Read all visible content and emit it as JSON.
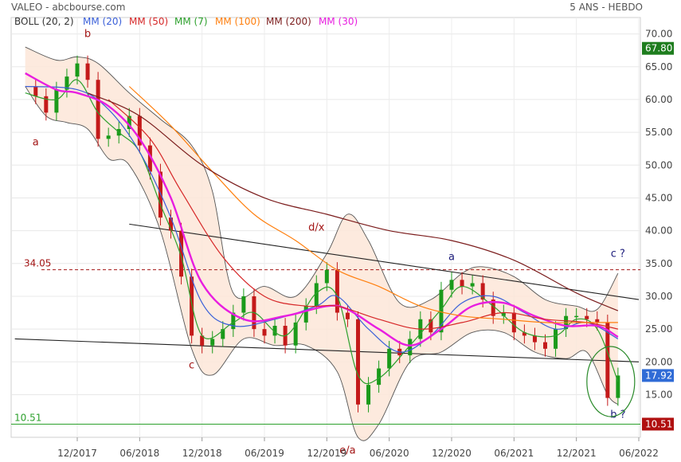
{
  "header": {
    "ticker": "VALEO - abcbourse.com",
    "period": "5 ANS - HEBDO"
  },
  "legend": [
    {
      "label": "BOLL (20, 2)",
      "color": "#333333"
    },
    {
      "label": "MM (20)",
      "color": "#3a5fd9"
    },
    {
      "label": "MM (50)",
      "color": "#d62728"
    },
    {
      "label": "MM (7)",
      "color": "#2ca02c"
    },
    {
      "label": "MM (100)",
      "color": "#ff7f0e"
    },
    {
      "label": "MM (200)",
      "color": "#7b1c1c"
    },
    {
      "label": "MM (30)",
      "color": "#e81ee0"
    }
  ],
  "chart_data": {
    "type": "line",
    "title": "VALEO - abcbourse.com",
    "ylim": [
      8.5,
      72.5
    ],
    "yticks": [
      15,
      20,
      25,
      30,
      35,
      40,
      45,
      50,
      55,
      60,
      65,
      70
    ],
    "ytick_labels": [
      "15.00",
      "20.00",
      "25.00",
      "30.00",
      "35.00",
      "40.00",
      "45.00",
      "50.00",
      "55.00",
      "60.00",
      "65.00",
      "70.00"
    ],
    "xticks": [
      "12/2017",
      "06/2018",
      "12/2018",
      "06/2019",
      "12/2019",
      "06/2020",
      "12/2020",
      "06/2021",
      "12/2021",
      "06/2022"
    ],
    "price_labels": {
      "high": "67.80",
      "last": "17.92",
      "low": "10.51"
    },
    "levels": [
      {
        "label": "34.05",
        "value": 34.05,
        "color": "#a31515",
        "style": "dashed"
      },
      {
        "label": "10.51",
        "value": 10.51,
        "color": "#2ca02c",
        "style": "solid"
      }
    ],
    "close_series": [
      [
        "2017-07",
        62.0
      ],
      [
        "2017-08",
        60.5
      ],
      [
        "2017-09",
        58.0
      ],
      [
        "2017-10",
        61.5
      ],
      [
        "2017-11",
        63.5
      ],
      [
        "2017-12",
        65.5
      ],
      [
        "2018-01",
        63.0
      ],
      [
        "2018-02",
        54.0
      ],
      [
        "2018-03",
        54.5
      ],
      [
        "2018-04",
        55.5
      ],
      [
        "2018-05",
        57.5
      ],
      [
        "2018-06",
        53.0
      ],
      [
        "2018-07",
        49.0
      ],
      [
        "2018-08",
        42.0
      ],
      [
        "2018-09",
        40.0
      ],
      [
        "2018-10",
        33.0
      ],
      [
        "2018-11",
        24.0
      ],
      [
        "2018-12",
        22.5
      ],
      [
        "2019-01",
        23.5
      ],
      [
        "2019-02",
        25.0
      ],
      [
        "2019-03",
        27.5
      ],
      [
        "2019-04",
        30.0
      ],
      [
        "2019-05",
        25.0
      ],
      [
        "2019-06",
        24.0
      ],
      [
        "2019-07",
        25.5
      ],
      [
        "2019-08",
        22.5
      ],
      [
        "2019-09",
        26.0
      ],
      [
        "2019-10",
        28.5
      ],
      [
        "2019-11",
        32.0
      ],
      [
        "2019-12",
        34.0
      ],
      [
        "2020-01",
        27.5
      ],
      [
        "2020-02",
        26.5
      ],
      [
        "2020-03",
        13.5
      ],
      [
        "2020-04",
        16.5
      ],
      [
        "2020-05",
        19.0
      ],
      [
        "2020-06",
        22.0
      ],
      [
        "2020-07",
        21.0
      ],
      [
        "2020-08",
        23.5
      ],
      [
        "2020-09",
        26.5
      ],
      [
        "2020-10",
        24.5
      ],
      [
        "2020-11",
        31.0
      ],
      [
        "2020-12",
        32.5
      ],
      [
        "2021-01",
        31.5
      ],
      [
        "2021-02",
        32.0
      ],
      [
        "2021-03",
        29.5
      ],
      [
        "2021-04",
        27.0
      ],
      [
        "2021-05",
        27.5
      ],
      [
        "2021-06",
        24.5
      ],
      [
        "2021-07",
        24.0
      ],
      [
        "2021-08",
        23.0
      ],
      [
        "2021-09",
        22.0
      ],
      [
        "2021-10",
        25.0
      ],
      [
        "2021-11",
        27.0
      ],
      [
        "2021-12",
        27.0
      ],
      [
        "2022-01",
        26.5
      ],
      [
        "2022-02",
        26.0
      ],
      [
        "2022-03",
        14.5
      ],
      [
        "2022-04",
        17.92
      ]
    ],
    "moving_averages": [
      {
        "name": "MM (7)",
        "color": "#2ca02c",
        "values": [
          [
            "2017-07",
            61.0
          ],
          [
            "2017-10",
            60.0
          ],
          [
            "2017-12",
            63.0
          ],
          [
            "2018-02",
            58.0
          ],
          [
            "2018-04",
            55.0
          ],
          [
            "2018-06",
            52.0
          ],
          [
            "2018-08",
            44.0
          ],
          [
            "2018-10",
            36.0
          ],
          [
            "2018-12",
            24.0
          ],
          [
            "2019-03",
            26.0
          ],
          [
            "2019-05",
            27.5
          ],
          [
            "2019-08",
            24.0
          ],
          [
            "2019-11",
            30.5
          ],
          [
            "2020-01",
            30.0
          ],
          [
            "2020-03",
            18.0
          ],
          [
            "2020-05",
            17.5
          ],
          [
            "2020-08",
            22.5
          ],
          [
            "2020-11",
            28.0
          ],
          [
            "2021-01",
            31.5
          ],
          [
            "2021-04",
            28.5
          ],
          [
            "2021-07",
            24.5
          ],
          [
            "2021-10",
            24.0
          ],
          [
            "2021-12",
            26.5
          ],
          [
            "2022-02",
            25.0
          ],
          [
            "2022-04",
            17.0
          ]
        ]
      },
      {
        "name": "MM (20)",
        "color": "#3a5fd9",
        "values": [
          [
            "2017-07",
            62.0
          ],
          [
            "2017-12",
            61.5
          ],
          [
            "2018-03",
            58.5
          ],
          [
            "2018-06",
            52.0
          ],
          [
            "2018-09",
            42.0
          ],
          [
            "2018-12",
            29.0
          ],
          [
            "2019-03",
            25.5
          ],
          [
            "2019-07",
            26.5
          ],
          [
            "2019-11",
            28.5
          ],
          [
            "2020-01",
            30.0
          ],
          [
            "2020-04",
            25.0
          ],
          [
            "2020-07",
            21.5
          ],
          [
            "2020-10",
            24.0
          ],
          [
            "2021-01",
            29.0
          ],
          [
            "2021-04",
            30.0
          ],
          [
            "2021-07",
            27.5
          ],
          [
            "2021-10",
            25.0
          ],
          [
            "2022-01",
            26.0
          ],
          [
            "2022-04",
            23.5
          ]
        ]
      },
      {
        "name": "MM (30)",
        "color": "#e81ee0",
        "values": [
          [
            "2017-07",
            64.0
          ],
          [
            "2017-10",
            61.5
          ],
          [
            "2017-12",
            61.0
          ],
          [
            "2018-03",
            59.0
          ],
          [
            "2018-06",
            54.0
          ],
          [
            "2018-09",
            45.0
          ],
          [
            "2018-12",
            32.0
          ],
          [
            "2019-04",
            26.5
          ],
          [
            "2019-08",
            27.0
          ],
          [
            "2019-12",
            28.5
          ],
          [
            "2020-02",
            28.0
          ],
          [
            "2020-05",
            25.0
          ],
          [
            "2020-08",
            22.5
          ],
          [
            "2020-11",
            25.0
          ],
          [
            "2021-02",
            28.5
          ],
          [
            "2021-05",
            29.0
          ],
          [
            "2021-08",
            27.0
          ],
          [
            "2021-11",
            25.5
          ],
          [
            "2022-02",
            25.5
          ],
          [
            "2022-04",
            23.8
          ]
        ]
      },
      {
        "name": "MM (50)",
        "color": "#d62728",
        "values": [
          [
            "2018-03",
            60.0
          ],
          [
            "2018-07",
            54.0
          ],
          [
            "2018-10",
            46.0
          ],
          [
            "2019-02",
            36.0
          ],
          [
            "2019-06",
            30.0
          ],
          [
            "2019-10",
            28.5
          ],
          [
            "2020-01",
            28.5
          ],
          [
            "2020-05",
            26.5
          ],
          [
            "2020-09",
            25.0
          ],
          [
            "2021-01",
            26.0
          ],
          [
            "2021-05",
            27.5
          ],
          [
            "2021-09",
            26.5
          ],
          [
            "2022-01",
            26.0
          ],
          [
            "2022-04",
            25.0
          ]
        ]
      },
      {
        "name": "MM (100)",
        "color": "#ff7f0e",
        "values": [
          [
            "2018-05",
            62.0
          ],
          [
            "2018-09",
            56.0
          ],
          [
            "2019-01",
            49.0
          ],
          [
            "2019-05",
            42.5
          ],
          [
            "2019-09",
            38.5
          ],
          [
            "2020-01",
            34.0
          ],
          [
            "2020-05",
            31.5
          ],
          [
            "2020-09",
            28.5
          ],
          [
            "2021-01",
            27.0
          ],
          [
            "2021-05",
            26.5
          ],
          [
            "2021-09",
            26.0
          ],
          [
            "2022-01",
            26.0
          ],
          [
            "2022-04",
            26.0
          ]
        ]
      },
      {
        "name": "MM (200)",
        "color": "#7b1c1c",
        "values": [
          [
            "2018-01",
            61.0
          ],
          [
            "2018-06",
            57.5
          ],
          [
            "2018-12",
            50.0
          ],
          [
            "2019-06",
            45.0
          ],
          [
            "2019-12",
            42.5
          ],
          [
            "2020-06",
            40.0
          ],
          [
            "2020-12",
            38.5
          ],
          [
            "2021-06",
            35.5
          ],
          [
            "2021-12",
            30.5
          ],
          [
            "2022-04",
            27.8
          ]
        ]
      }
    ],
    "bollinger": {
      "upper": [
        [
          "2017-07",
          68.0
        ],
        [
          "2017-10",
          66.0
        ],
        [
          "2017-12",
          66.5
        ],
        [
          "2018-02",
          65.5
        ],
        [
          "2018-05",
          61.0
        ],
        [
          "2018-08",
          57.0
        ],
        [
          "2018-11",
          53.0
        ],
        [
          "2019-01",
          46.0
        ],
        [
          "2019-03",
          30.5
        ],
        [
          "2019-06",
          31.5
        ],
        [
          "2019-09",
          30.0
        ],
        [
          "2019-12",
          36.5
        ],
        [
          "2020-02",
          42.5
        ],
        [
          "2020-04",
          38.5
        ],
        [
          "2020-07",
          29.0
        ],
        [
          "2020-10",
          29.5
        ],
        [
          "2021-01",
          33.5
        ],
        [
          "2021-03",
          34.5
        ],
        [
          "2021-06",
          33.0
        ],
        [
          "2021-09",
          29.5
        ],
        [
          "2021-12",
          28.5
        ],
        [
          "2022-02",
          28.0
        ],
        [
          "2022-04",
          33.5
        ]
      ],
      "lower": [
        [
          "2017-07",
          62.0
        ],
        [
          "2017-09",
          57.5
        ],
        [
          "2017-11",
          56.5
        ],
        [
          "2018-01",
          55.5
        ],
        [
          "2018-03",
          51.0
        ],
        [
          "2018-05",
          50.0
        ],
        [
          "2018-08",
          40.0
        ],
        [
          "2018-11",
          22.0
        ],
        [
          "2019-01",
          18.0
        ],
        [
          "2019-04",
          23.5
        ],
        [
          "2019-07",
          22.5
        ],
        [
          "2019-10",
          22.5
        ],
        [
          "2020-01",
          18.5
        ],
        [
          "2020-03",
          8.5
        ],
        [
          "2020-05",
          10.5
        ],
        [
          "2020-08",
          20.0
        ],
        [
          "2020-11",
          21.5
        ],
        [
          "2021-02",
          24.5
        ],
        [
          "2021-05",
          24.5
        ],
        [
          "2021-08",
          21.5
        ],
        [
          "2021-11",
          20.5
        ],
        [
          "2022-01",
          21.5
        ],
        [
          "2022-03",
          15.0
        ],
        [
          "2022-04",
          13.5
        ]
      ]
    },
    "trendlines": [
      {
        "from": [
          "2018-05",
          41.0
        ],
        "to": [
          "2022-06",
          29.5
        ]
      },
      {
        "from": [
          "2017-06",
          23.5
        ],
        "to": [
          "2022-06",
          20.0
        ]
      }
    ],
    "annotations": [
      {
        "text": "a",
        "x": "2017-08",
        "y": 53.0,
        "color": "#a31515"
      },
      {
        "text": "b",
        "x": "2018-01",
        "y": 69.5,
        "color": "#a31515"
      },
      {
        "text": "c",
        "x": "2018-11",
        "y": 19.0,
        "color": "#a31515"
      },
      {
        "text": "d/x",
        "x": "2019-11",
        "y": 40.0,
        "color": "#a31515"
      },
      {
        "text": "e/a",
        "x": "2020-02",
        "y": 6.0,
        "color": "#a31515"
      },
      {
        "text": "a",
        "x": "2020-12",
        "y": 35.5,
        "color": "#1a1a7a"
      },
      {
        "text": "c ?",
        "x": "2022-04",
        "y": 36.0,
        "color": "#1a1a7a"
      },
      {
        "text": "b ?",
        "x": "2022-04",
        "y": 11.5,
        "color": "#1a1a7a"
      }
    ],
    "highlight_ellipse": {
      "center": [
        "2022-03",
        17.0
      ],
      "note": "green ellipse around b ?"
    },
    "grid": true,
    "legend_position": "top-left"
  }
}
